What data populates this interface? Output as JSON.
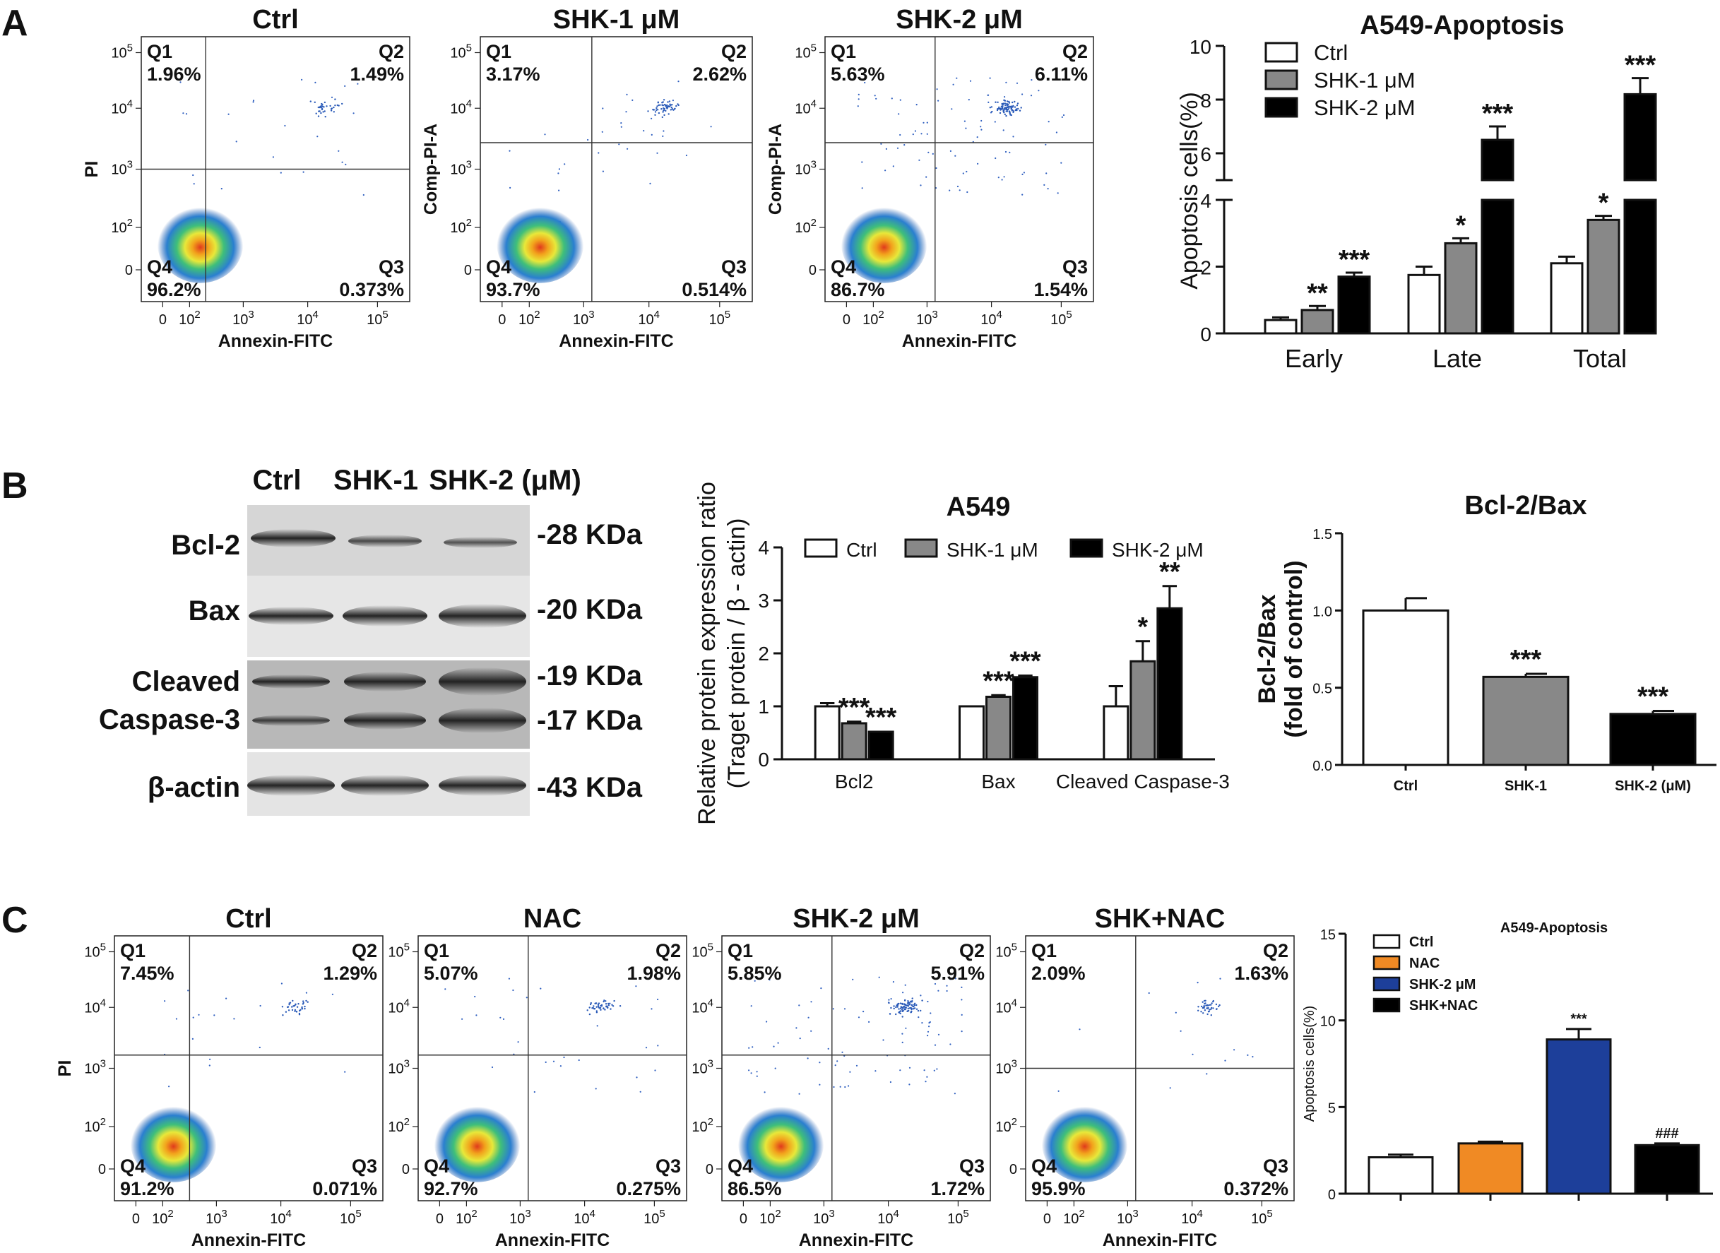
{
  "panel_labels": [
    "A",
    "B",
    "C"
  ],
  "row_a": {
    "flow_plots": [
      {
        "title": "Ctrl",
        "ylabel": "PI",
        "xlabel": "Annexin-FITC",
        "quadrants": {
          "q1": {
            "label": "Q1",
            "value": "1.96%"
          },
          "q2": {
            "label": "Q2",
            "value": "1.49%"
          },
          "q3": {
            "label": "Q3",
            "value": "0.373%"
          },
          "q4": {
            "label": "Q4",
            "value": "96.2%"
          }
        }
      },
      {
        "title": "SHK-1 μM",
        "ylabel": "Comp-PI-A",
        "xlabel": "Annexin-FITC",
        "quadrants": {
          "q1": {
            "label": "Q1",
            "value": "3.17%"
          },
          "q2": {
            "label": "Q2",
            "value": "2.62%"
          },
          "q3": {
            "label": "Q3",
            "value": "0.514%"
          },
          "q4": {
            "label": "Q4",
            "value": "93.7%"
          }
        }
      },
      {
        "title": "SHK-2 μM",
        "ylabel": "Comp-PI-A",
        "xlabel": "Annexin-FITC",
        "quadrants": {
          "q1": {
            "label": "Q1",
            "value": "5.63%"
          },
          "q2": {
            "label": "Q2",
            "value": "6.11%"
          },
          "q3": {
            "label": "Q3",
            "value": "1.54%"
          },
          "q4": {
            "label": "Q4",
            "value": "86.7%"
          }
        }
      }
    ]
  },
  "row_b": {
    "western_blot": {
      "lanes": [
        "Ctrl",
        "SHK-1",
        "SHK-2 (μM)"
      ],
      "proteins": [
        "Bcl-2",
        "Bax",
        "Cleaved",
        "Caspase-3",
        "β-actin"
      ],
      "sizes": [
        "-28 KDa",
        "-20 KDa",
        "-19 KDa",
        "-17 KDa",
        "-43 KDa"
      ]
    }
  },
  "row_c": {
    "flow_plots": [
      {
        "title": "Ctrl",
        "ylabel": "PI",
        "xlabel": "Annexin-FITC",
        "quadrants": {
          "q1": {
            "label": "Q1",
            "value": "7.45%"
          },
          "q2": {
            "label": "Q2",
            "value": "1.29%"
          },
          "q3": {
            "label": "Q3",
            "value": "0.071%"
          },
          "q4": {
            "label": "Q4",
            "value": "91.2%"
          }
        }
      },
      {
        "title": "NAC",
        "ylabel": "",
        "xlabel": "Annexin-FITC",
        "quadrants": {
          "q1": {
            "label": "Q1",
            "value": "5.07%"
          },
          "q2": {
            "label": "Q2",
            "value": "1.98%"
          },
          "q3": {
            "label": "Q3",
            "value": "0.275%"
          },
          "q4": {
            "label": "Q4",
            "value": "92.7%"
          }
        }
      },
      {
        "title": "SHK-2 μM",
        "ylabel": "",
        "xlabel": "Annexin-FITC",
        "quadrants": {
          "q1": {
            "label": "Q1",
            "value": "5.85%"
          },
          "q2": {
            "label": "Q2",
            "value": "5.91%"
          },
          "q3": {
            "label": "Q3",
            "value": "1.72%"
          },
          "q4": {
            "label": "Q4",
            "value": "86.5%"
          }
        }
      },
      {
        "title": "SHK+NAC",
        "ylabel": "",
        "xlabel": "Annexin-FITC",
        "quadrants": {
          "q1": {
            "label": "Q1",
            "value": "2.09%"
          },
          "q2": {
            "label": "Q2",
            "value": "1.63%"
          },
          "q3": {
            "label": "Q3",
            "value": "0.372%"
          },
          "q4": {
            "label": "Q4",
            "value": "95.9%"
          }
        }
      }
    ]
  },
  "chart_data": [
    {
      "type": "bar",
      "title": "A549-Apoptosis",
      "ylabel": "Apoptosis cells(%)",
      "categories": [
        "Early",
        "Late",
        "Total"
      ],
      "ylim": [
        0,
        10
      ],
      "y_break": [
        4.8,
        5
      ],
      "yticks": [
        "0",
        "2",
        "4",
        "6",
        "8",
        "10"
      ],
      "series": [
        {
          "name": "Ctrl",
          "values": [
            0.4,
            1.75,
            2.1
          ],
          "errors": [
            0.08,
            0.25,
            0.2
          ],
          "sig": [
            "",
            "",
            ""
          ]
        },
        {
          "name": "SHK-1 μM",
          "values": [
            0.7,
            2.7,
            3.4
          ],
          "errors": [
            0.12,
            0.15,
            0.12
          ],
          "sig": [
            "**",
            "*",
            "*"
          ]
        },
        {
          "name": "SHK-2 μM",
          "values": [
            1.7,
            6.5,
            8.2
          ],
          "errors": [
            0.12,
            0.5,
            0.6
          ],
          "sig": [
            "***",
            "***",
            "***"
          ]
        }
      ]
    },
    {
      "type": "bar",
      "title": "A549",
      "ylabel": "Relative protein expression ratio",
      "ylabel2": "(Traget protein / β - actin)",
      "categories": [
        "Bcl2",
        "Bax",
        "Cleaved Caspase-3"
      ],
      "ylim": [
        0,
        4
      ],
      "yticks": [
        "0",
        "1",
        "2",
        "3",
        "4"
      ],
      "series": [
        {
          "name": "Ctrl",
          "values": [
            1.0,
            1.0,
            1.0
          ],
          "errors": [
            0.06,
            0.0,
            0.38
          ],
          "sig": [
            "",
            "",
            ""
          ]
        },
        {
          "name": "SHK-1 μM",
          "values": [
            0.68,
            1.18,
            1.85
          ],
          "errors": [
            0.03,
            0.03,
            0.38
          ],
          "sig": [
            "***",
            "***",
            "*"
          ]
        },
        {
          "name": "SHK-2 μM",
          "values": [
            0.52,
            1.55,
            2.85
          ],
          "errors": [
            0.0,
            0.03,
            0.42
          ],
          "sig": [
            "***",
            "***",
            "**"
          ]
        }
      ]
    },
    {
      "type": "bar",
      "title": "Bcl-2/Bax",
      "ylabel": "Bcl-2/Bax",
      "ylabel2": "(fold of control)",
      "categories": [
        "Ctrl",
        "SHK-1",
        "SHK-2 (μM)"
      ],
      "ylim": [
        0,
        1.5
      ],
      "yticks": [
        "0.0",
        "0.5",
        "1.0",
        "1.5"
      ],
      "series": [
        {
          "name": "Bcl-2/Bax",
          "values": [
            1.0,
            0.57,
            0.33
          ],
          "errors": [
            0.08,
            0.02,
            0.02
          ],
          "sig": [
            "",
            "***",
            "***"
          ]
        }
      ]
    },
    {
      "type": "bar",
      "title": "A549-Apoptosis",
      "ylabel": "Apoptosis cells(%)",
      "categories": [
        "Ctrl",
        "NAC",
        "SHK-2 μM",
        "SHK+NAC"
      ],
      "ylim": [
        0,
        15
      ],
      "yticks": [
        "0",
        "5",
        "10",
        "15"
      ],
      "values": [
        2.1,
        2.9,
        8.9,
        2.8
      ],
      "errors": [
        0.15,
        0.1,
        0.6,
        0.1
      ],
      "sig": [
        "",
        "",
        "***",
        "###"
      ],
      "colors": [
        "#ffffff",
        "#f08a24",
        "#1d3f9a",
        "#000000"
      ],
      "legend": [
        "Ctrl",
        "NAC",
        "SHK-2 μM",
        "SHK+NAC"
      ]
    }
  ]
}
